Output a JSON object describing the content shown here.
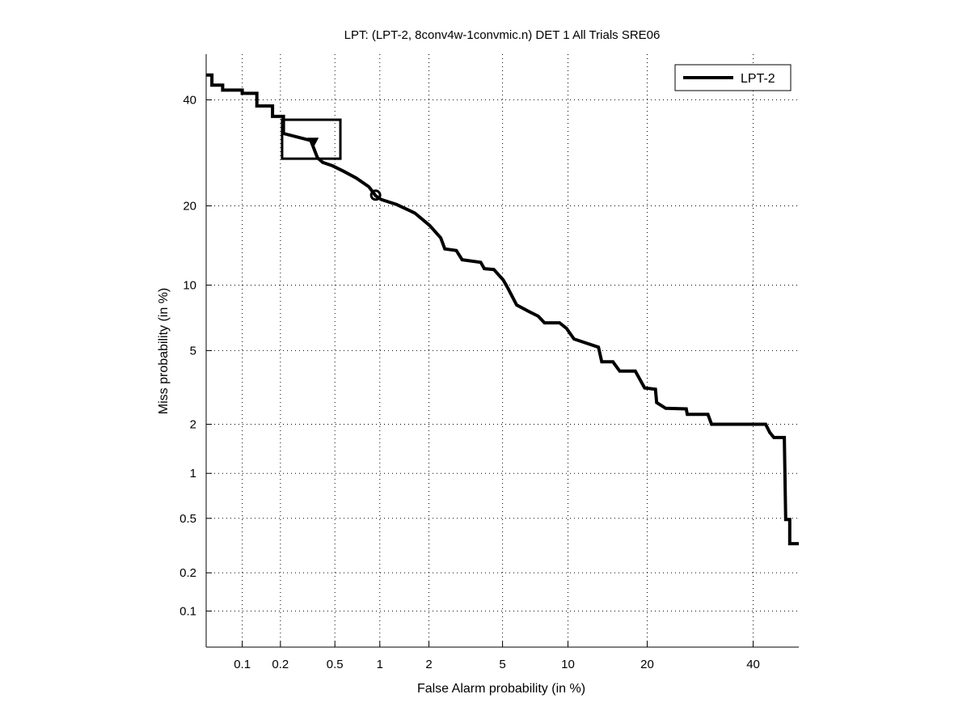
{
  "chart_data": {
    "type": "line",
    "title": "LPT: (LPT-2, 8conv4w-1convmic.n) DET 1 All Trials SRE06",
    "xlabel": "False Alarm probability (in %)",
    "ylabel": "Miss probability (in %)",
    "xscale": "probit",
    "yscale": "probit",
    "xlim": [
      0.05,
      50
    ],
    "ylim": [
      0.05,
      50
    ],
    "grid": true,
    "x_ticks": [
      0.1,
      0.2,
      0.5,
      1,
      2,
      5,
      10,
      20,
      40
    ],
    "x_tick_labels": [
      "0.1",
      "0.2",
      "0.5",
      "1",
      "2",
      "5",
      "10",
      "20",
      "40"
    ],
    "y_ticks": [
      0.1,
      0.2,
      0.5,
      1,
      2,
      5,
      10,
      20,
      40
    ],
    "y_tick_labels": [
      "0.1",
      "0.2",
      "0.5",
      "1",
      "2",
      "5",
      "10",
      "20",
      "40"
    ],
    "legend": {
      "placement": "top-right",
      "entries": [
        "LPT-2"
      ]
    },
    "series": [
      {
        "name": "LPT-2",
        "color": "#000000",
        "points": [
          [
            0.05,
            45.4
          ],
          [
            0.056,
            45.4
          ],
          [
            0.056,
            43.2
          ],
          [
            0.069,
            43.2
          ],
          [
            0.069,
            42.1
          ],
          [
            0.1,
            42.1
          ],
          [
            0.1,
            41.4
          ],
          [
            0.131,
            41.4
          ],
          [
            0.131,
            38.7
          ],
          [
            0.174,
            38.7
          ],
          [
            0.174,
            36.5
          ],
          [
            0.211,
            36.5
          ],
          [
            0.211,
            33.0
          ],
          [
            0.337,
            31.6
          ],
          [
            0.376,
            28.3
          ],
          [
            0.41,
            27.4
          ],
          [
            0.48,
            26.8
          ],
          [
            0.574,
            25.8
          ],
          [
            0.7,
            24.6
          ],
          [
            0.85,
            23.1
          ],
          [
            0.94,
            21.6
          ],
          [
            1.02,
            21.0
          ],
          [
            1.28,
            20.2
          ],
          [
            1.65,
            18.9
          ],
          [
            2.02,
            17.1
          ],
          [
            2.34,
            15.4
          ],
          [
            2.47,
            14.0
          ],
          [
            2.86,
            13.8
          ],
          [
            3.08,
            12.7
          ],
          [
            3.87,
            12.4
          ],
          [
            4.04,
            11.7
          ],
          [
            4.52,
            11.6
          ],
          [
            5.04,
            10.5
          ],
          [
            5.3,
            9.75
          ],
          [
            5.86,
            8.2
          ],
          [
            6.64,
            7.7
          ],
          [
            7.4,
            7.3
          ],
          [
            7.9,
            6.8
          ],
          [
            9.2,
            6.8
          ],
          [
            9.86,
            6.4
          ],
          [
            10.6,
            5.7
          ],
          [
            13.3,
            5.2
          ],
          [
            13.7,
            4.39
          ],
          [
            15.1,
            4.39
          ],
          [
            16.0,
            3.93
          ],
          [
            18.2,
            3.93
          ],
          [
            19.6,
            3.2
          ],
          [
            21.3,
            3.15
          ],
          [
            21.5,
            2.66
          ],
          [
            23.0,
            2.47
          ],
          [
            26.6,
            2.45
          ],
          [
            26.8,
            2.28
          ],
          [
            30.7,
            2.28
          ],
          [
            31.4,
            2.0
          ],
          [
            42.7,
            2.0
          ],
          [
            43.6,
            1.79
          ],
          [
            44.5,
            1.67
          ],
          [
            46.8,
            1.67
          ],
          [
            47.1,
            0.49
          ],
          [
            48.0,
            0.49
          ],
          [
            48.0,
            0.33
          ],
          [
            50.0,
            0.33
          ]
        ]
      }
    ],
    "markers": [
      {
        "name": "min-dcf-point",
        "shape": "triangle",
        "x": 0.35,
        "y": 31.2
      },
      {
        "name": "actual-dcf-point",
        "shape": "circle",
        "x": 0.94,
        "y": 21.7
      }
    ],
    "confidence_box": {
      "x": [
        0.206,
        0.546
      ],
      "y": [
        28.1,
        35.8
      ]
    }
  }
}
